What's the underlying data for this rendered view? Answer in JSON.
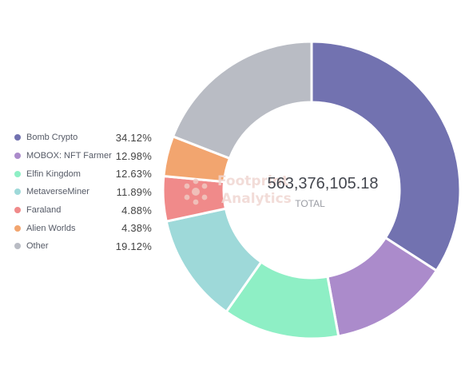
{
  "chart_data": {
    "type": "pie",
    "donut": true,
    "total_value": "563,376,105.18",
    "total_caption": "TOTAL",
    "legend_position": "left",
    "series": [
      {
        "name": "Bomb Crypto",
        "value": 34.12,
        "label": "34.12%",
        "color": "#7272b0"
      },
      {
        "name": "MOBOX: NFT Farmer",
        "value": 12.98,
        "label": "12.98%",
        "color": "#ab8bcb"
      },
      {
        "name": "Elfin Kingdom",
        "value": 12.63,
        "label": "12.63%",
        "color": "#8eefc5"
      },
      {
        "name": "MetaverseMiner",
        "value": 11.89,
        "label": "11.89%",
        "color": "#9ed9d9"
      },
      {
        "name": "Faraland",
        "value": 4.88,
        "label": "4.88%",
        "color": "#f08a8a"
      },
      {
        "name": "Alien Worlds",
        "value": 4.38,
        "label": "4.38%",
        "color": "#f2a56f"
      },
      {
        "name": "Other",
        "value": 19.12,
        "label": "19.12%",
        "color": "#b9bcc4"
      }
    ]
  },
  "watermark": {
    "line1": "Footprint",
    "line2": "Analytics"
  }
}
